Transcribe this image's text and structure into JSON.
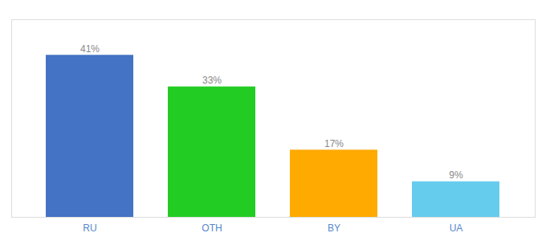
{
  "chart_data": {
    "type": "bar",
    "categories": [
      "RU",
      "OTH",
      "BY",
      "UA"
    ],
    "values": [
      41,
      33,
      17,
      9
    ],
    "value_labels": [
      "41%",
      "33%",
      "17%",
      "9%"
    ],
    "data_labels": true,
    "colors": [
      "#4472c4",
      "#22cc22",
      "#ffaa00",
      "#66ccee"
    ],
    "ylim": [
      0,
      50
    ],
    "tick_labels": "x"
  }
}
